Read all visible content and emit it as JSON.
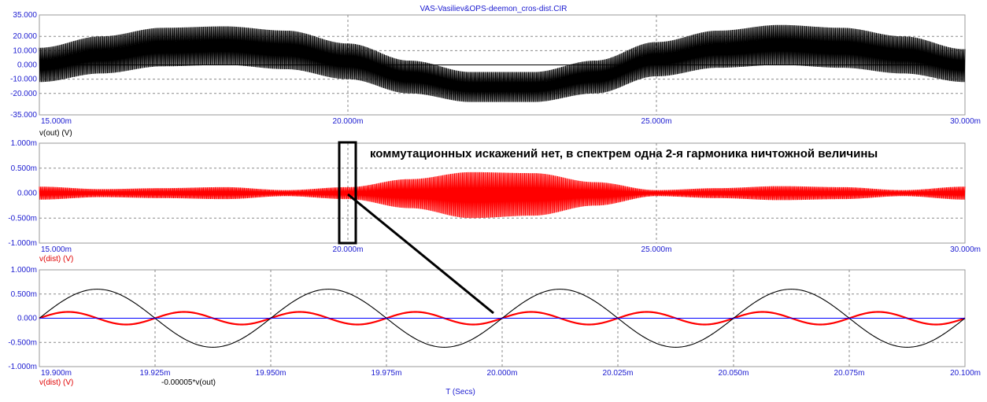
{
  "window_title": "VAS-Vasiliev&OPS-deemon_cros-dist.CIR",
  "x_axis_label": "T (Secs)",
  "annotation": "коммутационных искажений нет, в спектрем одна 2-я гармоника ничтожной величины",
  "chart_data": [
    {
      "type": "line",
      "ylabel": "v(out) (V)",
      "ylim": [
        -35,
        35
      ],
      "xlim": [
        15.0,
        30.0
      ],
      "x_unit": "ms",
      "y_ticks": [
        "35.000",
        "20.000",
        "10.000",
        "0.000",
        "-10.000",
        "-20.000",
        "-35.000"
      ],
      "y_tick_values": [
        35,
        20,
        10,
        0,
        -10,
        -20,
        -35
      ],
      "x_ticks": [
        "15.000m",
        "20.000m",
        "25.000m",
        "30.000m"
      ],
      "x_tick_values": [
        15,
        20,
        25,
        30
      ],
      "series": [
        {
          "name": "v(out) (V)",
          "color": "#000000",
          "envelope": {
            "x": [
              15.0,
              16.0,
              17.0,
              18.0,
              19.0,
              20.0,
              21.0,
              22.0,
              23.0,
              24.0,
              25.0,
              26.0,
              27.0,
              28.0,
              29.0,
              30.0
            ],
            "upper": [
              12,
              20,
              26,
              27,
              24,
              15,
              3,
              -5,
              -5,
              3,
              16,
              24,
              28,
              26,
              20,
              11
            ],
            "lower": [
              -12,
              -6,
              -1,
              0,
              -3,
              -10,
              -20,
              -26,
              -26,
              -20,
              -8,
              -2,
              0,
              -2,
              -6,
              -12
            ]
          }
        }
      ]
    },
    {
      "type": "line",
      "ylabel": "v(dist) (V)",
      "ylim": [
        -1.0,
        1.0
      ],
      "xlim": [
        15.0,
        30.0
      ],
      "x_unit": "ms",
      "y_ticks": [
        "1.000m",
        "0.500m",
        "0.000",
        "-0.500m",
        "-1.000m"
      ],
      "y_tick_values": [
        1.0,
        0.5,
        0.0,
        -0.5,
        -1.0
      ],
      "x_ticks": [
        "15.000m",
        "20.000m",
        "25.000m",
        "30.000m"
      ],
      "x_tick_values": [
        15,
        20,
        25,
        30
      ],
      "series": [
        {
          "name": "v(dist) (V)",
          "color": "#ff0000",
          "envelope": {
            "x": [
              15.0,
              16.0,
              17.0,
              18.0,
              19.0,
              20.0,
              21.0,
              22.0,
              23.0,
              24.0,
              25.0,
              26.0,
              27.0,
              28.0,
              29.0,
              30.0
            ],
            "upper": [
              0.13,
              0.08,
              0.1,
              0.12,
              0.06,
              0.12,
              0.28,
              0.42,
              0.4,
              0.22,
              0.06,
              0.1,
              0.14,
              0.12,
              0.06,
              0.13
            ],
            "lower": [
              -0.13,
              -0.08,
              -0.1,
              -0.12,
              -0.06,
              -0.12,
              -0.3,
              -0.5,
              -0.45,
              -0.25,
              -0.06,
              -0.1,
              -0.14,
              -0.12,
              -0.06,
              -0.13
            ]
          }
        }
      ]
    },
    {
      "type": "line",
      "ylim": [
        -1.0,
        1.0
      ],
      "xlim": [
        19.9,
        20.1
      ],
      "x_unit": "ms",
      "y_ticks": [
        "1.000m",
        "0.500m",
        "0.000",
        "-0.500m",
        "-1.000m"
      ],
      "y_tick_values": [
        1.0,
        0.5,
        0.0,
        -0.5,
        -1.0
      ],
      "x_ticks": [
        "19.900m",
        "19.925m",
        "19.950m",
        "19.975m",
        "20.000m",
        "20.025m",
        "20.050m",
        "20.075m",
        "20.100m"
      ],
      "x_tick_values": [
        19.9,
        19.925,
        19.95,
        19.975,
        20.0,
        20.025,
        20.05,
        20.075,
        20.1
      ],
      "series": [
        {
          "name": "v(dist) (V)",
          "color": "#ff0000",
          "amplitude": 0.13,
          "period": 0.025,
          "zero_at": 19.9
        },
        {
          "name": "-0.00005*v(out)",
          "color": "#000000",
          "amplitude": 0.6,
          "period": 0.05,
          "zero_at": 19.9
        },
        {
          "name": "zero-line",
          "color": "#0000ff",
          "amplitude": 0.0
        }
      ]
    }
  ]
}
